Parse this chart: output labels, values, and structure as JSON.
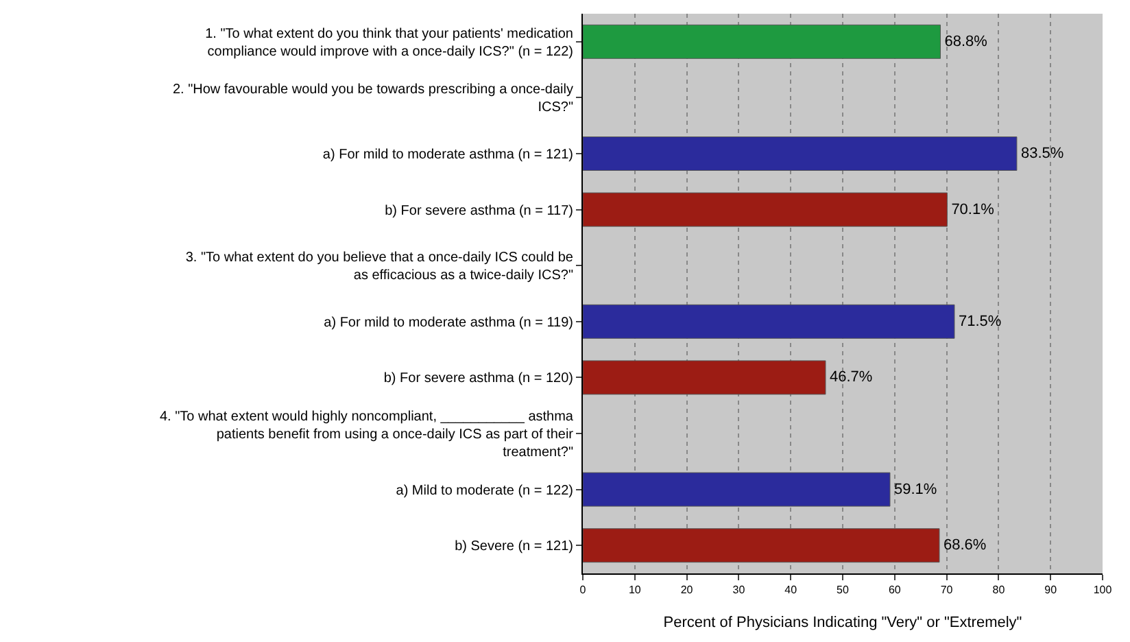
{
  "chart_data": {
    "type": "bar",
    "orientation": "horizontal",
    "categories": [
      "1. \"To what extent do you think that your patients' medication compliance would improve with a once-daily ICS?\" (n = 122)",
      "2. \"How favourable would you be towards prescribing a once-daily ICS?\"",
      "a) For mild to moderate asthma (n = 121)",
      "b) For severe asthma (n = 117)",
      "3. \"To what extent do you believe that a once-daily ICS could be as efficacious as a twice-daily ICS?\"",
      "a) For mild to moderate asthma (n = 119)",
      "b) For severe asthma (n = 120)",
      "4. \"To what extent would highly noncompliant, ___________ asthma patients benefit from using a once-daily ICS as part of their treatment?\"",
      "a) Mild to moderate (n = 122)",
      "b) Severe (n = 121)"
    ],
    "values": [
      68.8,
      null,
      83.5,
      70.1,
      null,
      71.5,
      46.7,
      null,
      59.1,
      68.6
    ],
    "colors": [
      "#1e9a40",
      null,
      "#2b2b9c",
      "#9c1c14",
      null,
      "#2b2b9c",
      "#9c1c14",
      null,
      "#2b2b9c",
      "#9c1c14"
    ],
    "value_labels": [
      "68.8%",
      null,
      "83.5%",
      "70.1%",
      null,
      "71.5%",
      "46.7%",
      null,
      "59.1%",
      "68.6%"
    ],
    "xlabel": "Percent of Physicians Indicating \"Very\" or \"Extremely\"",
    "xlim": [
      0,
      100
    ],
    "xticks": [
      0,
      10,
      20,
      30,
      40,
      50,
      60,
      70,
      80,
      90,
      100
    ],
    "grid": "x",
    "legend": false
  }
}
